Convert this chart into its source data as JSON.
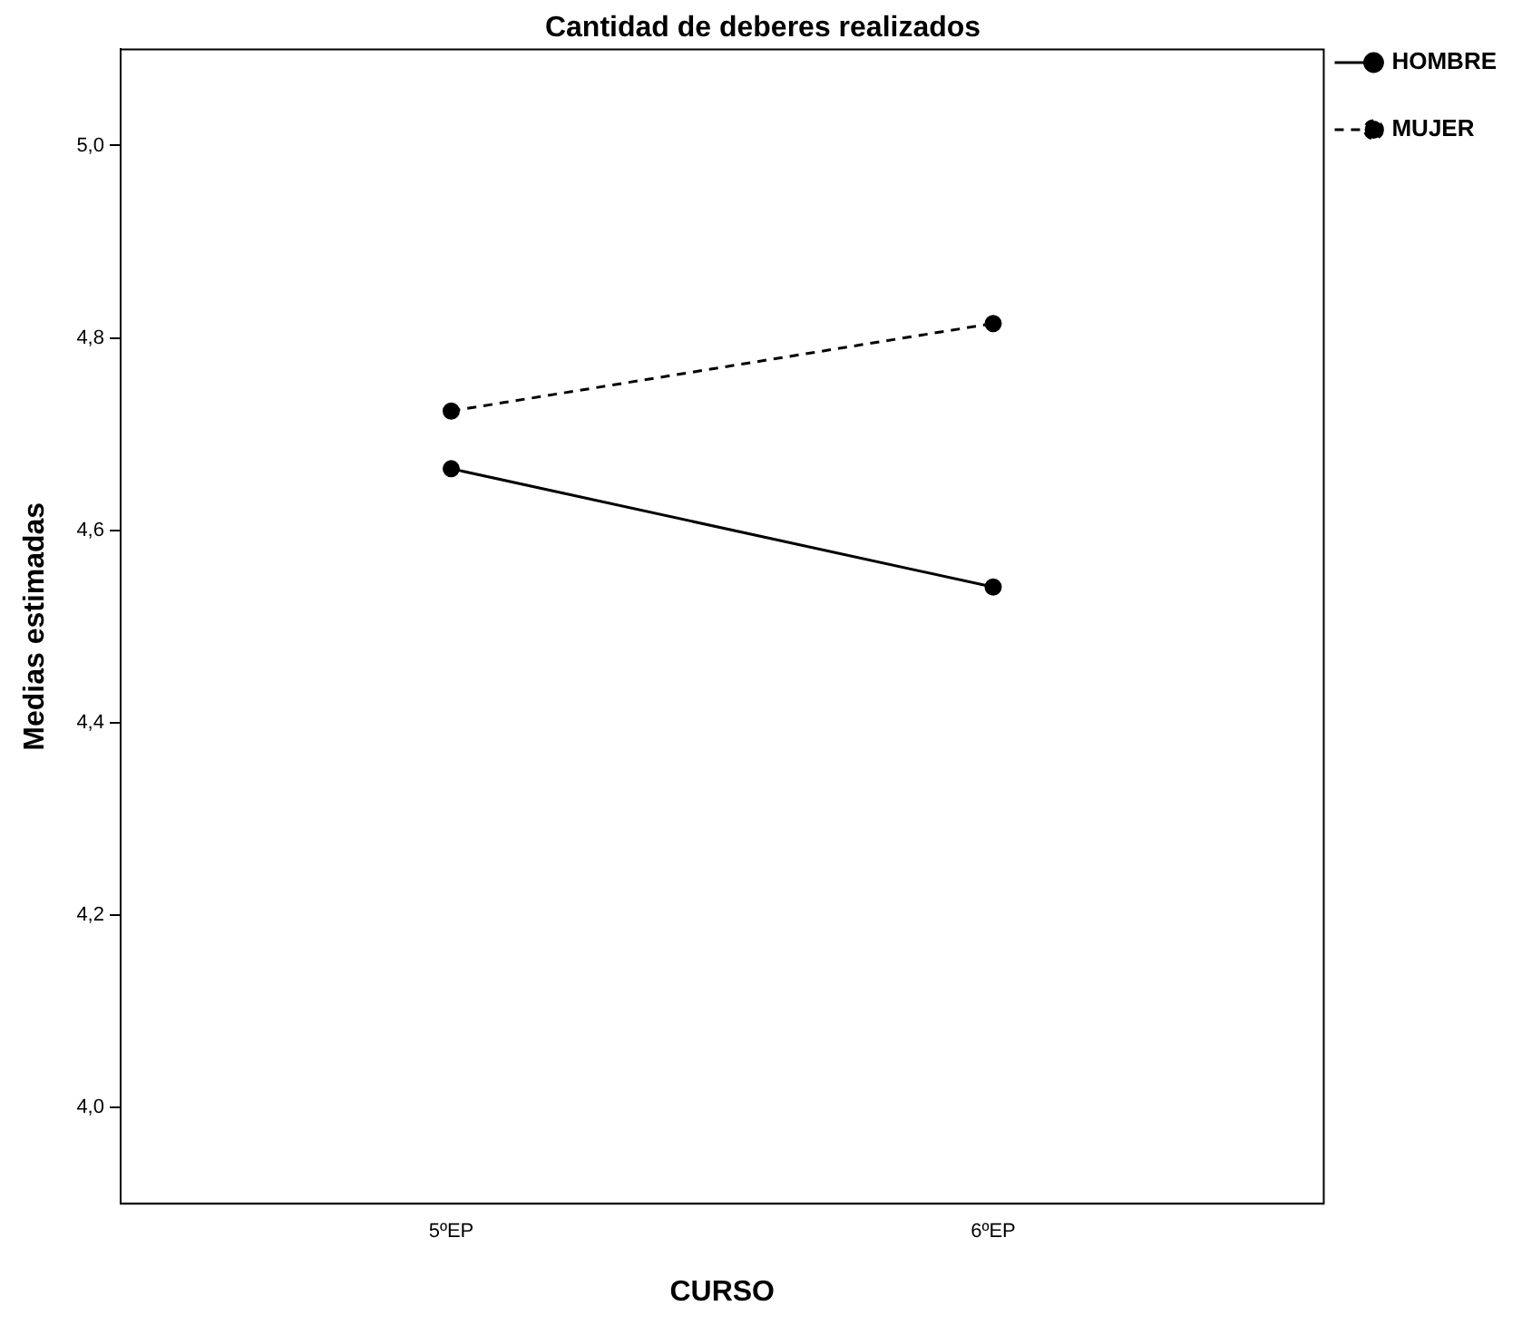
{
  "chart_data": {
    "type": "line",
    "title": "Cantidad de deberes realizados",
    "xlabel": "CURSO",
    "ylabel": "Medias estimadas",
    "categories": [
      "5ºEP",
      "6ºEP"
    ],
    "series": [
      {
        "name": "HOMBRE",
        "color": "#000000",
        "values": [
          4.664,
          4.541
        ],
        "line_style": "solid"
      },
      {
        "name": "MUJER",
        "color": "#000000",
        "values": [
          4.724,
          4.815
        ],
        "line_style": "dashed"
      }
    ],
    "ylim": [
      3.9,
      5.1
    ],
    "yticks": [
      {
        "value": 4.0,
        "label": "4,0"
      },
      {
        "value": 4.2,
        "label": "4,2"
      },
      {
        "value": 4.4,
        "label": "4,4"
      },
      {
        "value": 4.6,
        "label": "4,6"
      },
      {
        "value": 4.8,
        "label": "4,8"
      },
      {
        "value": 5.0,
        "label": "5,0"
      }
    ],
    "grid": false,
    "legend": "top right",
    "marker": "circle"
  }
}
